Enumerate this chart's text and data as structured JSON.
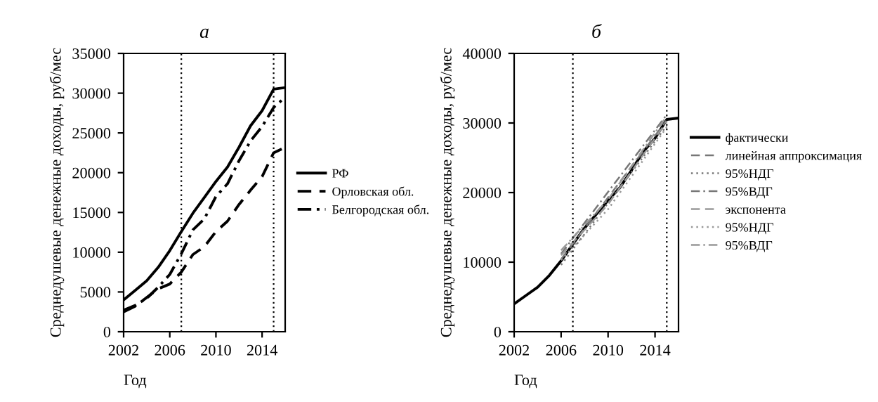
{
  "chart_data": [
    {
      "type": "line",
      "title": "а",
      "xlabel": "Год",
      "ylabel": "Среднедушевые денежные доходы, руб/мес",
      "x": [
        2002,
        2003,
        2004,
        2005,
        2006,
        2007,
        2008,
        2009,
        2010,
        2011,
        2012,
        2013,
        2014,
        2015,
        2016
      ],
      "series": [
        {
          "name": "РФ",
          "color": "#000000",
          "line_style": "solid",
          "values": [
            4000,
            5200,
            6400,
            8100,
            10200,
            12600,
            14900,
            16900,
            18900,
            20700,
            23200,
            25900,
            27800,
            30500,
            30700
          ]
        },
        {
          "name": "Орловская обл.",
          "color": "#000000",
          "line_style": "dashed",
          "values": [
            2500,
            3200,
            4300,
            5400,
            6000,
            7500,
            9700,
            10700,
            12600,
            13900,
            16000,
            17800,
            19500,
            22500,
            23200
          ]
        },
        {
          "name": "Белгородская обл.",
          "color": "#000000",
          "line_style": "dashdot",
          "values": [
            2700,
            3300,
            4200,
            5600,
            7200,
            9800,
            12800,
            14200,
            17000,
            18600,
            21500,
            24000,
            25800,
            28200,
            29500
          ]
        }
      ],
      "xlim": [
        2002,
        2016
      ],
      "xticks": [
        2002,
        2006,
        2010,
        2014
      ],
      "ylim": [
        0,
        35000
      ],
      "yticks": [
        0,
        5000,
        10000,
        15000,
        20000,
        25000,
        30000,
        35000
      ],
      "ref_lines": [
        {
          "axis": "x",
          "value": 2007,
          "color": "#000000",
          "line_style": "dotted"
        },
        {
          "axis": "x",
          "value": 2015,
          "color": "#000000",
          "line_style": "dotted"
        }
      ],
      "grid": false,
      "legend": "right"
    },
    {
      "type": "line",
      "title": "б",
      "xlabel": "Год",
      "ylabel": "Среднедушевые денежные доходы, руб/мес",
      "x": [
        2002,
        2003,
        2004,
        2005,
        2006,
        2007,
        2008,
        2009,
        2010,
        2011,
        2012,
        2013,
        2014,
        2015,
        2016
      ],
      "series": [
        {
          "name": "фактически",
          "color": "#000000",
          "line_style": "solid",
          "values": [
            4000,
            5200,
            6400,
            8100,
            10200,
            12600,
            14900,
            16900,
            18900,
            20700,
            23200,
            25900,
            27800,
            30500,
            30700
          ]
        },
        {
          "name": "линейная аппроксимация",
          "color": "#777777",
          "line_style": "dashed",
          "x": [
            2006,
            2015
          ],
          "values": [
            10400,
            30400
          ]
        },
        {
          "name": "95%НДГ",
          "color": "#777777",
          "line_style": "dotted",
          "x": [
            2006,
            2015
          ],
          "values": [
            9600,
            29600
          ]
        },
        {
          "name": "95%ВДГ",
          "color": "#777777",
          "line_style": "dashdot",
          "x": [
            2006,
            2015
          ],
          "values": [
            11200,
            31200
          ]
        },
        {
          "name": "экспонента",
          "color": "#999999",
          "line_style": "dashed",
          "x": [
            2006,
            2010,
            2015
          ],
          "values": [
            11000,
            18300,
            30200
          ]
        },
        {
          "name": "95%НДГ",
          "color": "#999999",
          "line_style": "dotted",
          "x": [
            2006,
            2010,
            2015
          ],
          "values": [
            10300,
            17600,
            29400
          ]
        },
        {
          "name": "95%ВДГ",
          "color": "#999999",
          "line_style": "dashdot",
          "x": [
            2006,
            2010,
            2015
          ],
          "values": [
            11700,
            19000,
            31000
          ]
        }
      ],
      "xlim": [
        2002,
        2016
      ],
      "xticks": [
        2002,
        2006,
        2010,
        2014
      ],
      "ylim": [
        0,
        40000
      ],
      "yticks": [
        0,
        10000,
        20000,
        30000,
        40000
      ],
      "ref_lines": [
        {
          "axis": "x",
          "value": 2007,
          "color": "#000000",
          "line_style": "dotted"
        },
        {
          "axis": "x",
          "value": 2015,
          "color": "#000000",
          "line_style": "dotted"
        }
      ],
      "grid": false,
      "legend": "right"
    }
  ]
}
